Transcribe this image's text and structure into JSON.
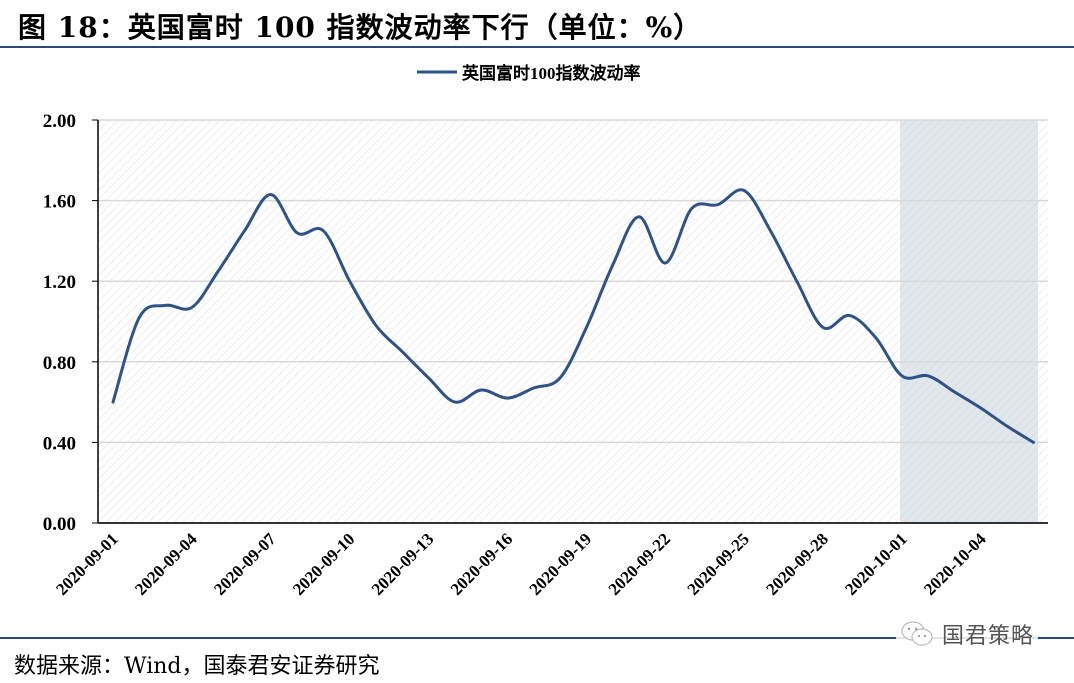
{
  "figure": {
    "title": "图 18：英国富时 100 指数波动率下行（单位：%）",
    "source": "数据来源：Wind，国泰君安证券研究",
    "watermark": "国君策略",
    "watermark_icon": "wechat-icon"
  },
  "colors": {
    "line": "#2e5387",
    "shade": "#dfe5ea",
    "grid": "#d9d9d9",
    "rule": "#2a4a7a"
  },
  "chart_data": {
    "type": "line",
    "title": "",
    "xlabel": "",
    "ylabel": "",
    "ylim": [
      0,
      2.0
    ],
    "yticks": [
      "0.00",
      "0.40",
      "0.80",
      "1.20",
      "1.60",
      "2.00"
    ],
    "xtick_labels": [
      "2020-09-01",
      "2020-09-04",
      "2020-09-07",
      "2020-09-10",
      "2020-09-13",
      "2020-09-16",
      "2020-09-19",
      "2020-09-22",
      "2020-09-25",
      "2020-09-28",
      "2020-10-01",
      "2020-10-04"
    ],
    "grid": true,
    "legend_position": "top",
    "shaded_region": {
      "from": "2020-10-01",
      "to": "2020-10-06"
    },
    "x": [
      "2020-09-01",
      "2020-09-02",
      "2020-09-03",
      "2020-09-04",
      "2020-09-05",
      "2020-09-06",
      "2020-09-07",
      "2020-09-08",
      "2020-09-09",
      "2020-09-10",
      "2020-09-11",
      "2020-09-12",
      "2020-09-13",
      "2020-09-14",
      "2020-09-15",
      "2020-09-16",
      "2020-09-17",
      "2020-09-18",
      "2020-09-19",
      "2020-09-20",
      "2020-09-21",
      "2020-09-22",
      "2020-09-23",
      "2020-09-24",
      "2020-09-25",
      "2020-09-26",
      "2020-09-27",
      "2020-09-28",
      "2020-09-29",
      "2020-09-30",
      "2020-10-01",
      "2020-10-02",
      "2020-10-03",
      "2020-10-04",
      "2020-10-05",
      "2020-10-06"
    ],
    "series": [
      {
        "name": "英国富时100指数波动率",
        "values": [
          0.6,
          1.02,
          1.08,
          1.07,
          1.25,
          1.45,
          1.63,
          1.44,
          1.45,
          1.2,
          0.98,
          0.85,
          0.72,
          0.6,
          0.66,
          0.62,
          0.67,
          0.72,
          0.97,
          1.28,
          1.52,
          1.29,
          1.56,
          1.58,
          1.65,
          1.45,
          1.2,
          0.97,
          1.03,
          0.92,
          0.73,
          0.73,
          0.65,
          0.57,
          0.48,
          0.4
        ]
      }
    ]
  }
}
